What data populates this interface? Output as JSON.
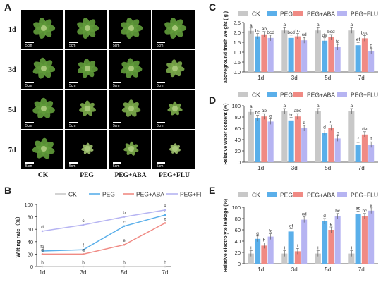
{
  "panel_labels": {
    "a": "A",
    "b": "B",
    "c": "C",
    "d": "D",
    "e": "E"
  },
  "photos": {
    "rows": [
      "1d",
      "3d",
      "5d",
      "7d"
    ],
    "columns": [
      "CK",
      "PEG",
      "PEG+ABA",
      "PEG+FLU"
    ],
    "scale_label": "5cm"
  },
  "colors": {
    "CK": "#c8c8c8",
    "PEG": "#5aafea",
    "PEG+ABA": "#f08a84",
    "PEG+FLU": "#b6b4f2"
  },
  "chart_data": [
    {
      "id": "B",
      "type": "line",
      "x": [
        "1d",
        "3d",
        "5d",
        "7d"
      ],
      "ylabel": "Wilting rate（%）",
      "ylim": [
        0,
        100
      ],
      "yticks": [
        0,
        20,
        40,
        60,
        80,
        100
      ],
      "series": [
        {
          "name": "CK",
          "values": [
            0,
            0,
            0,
            0
          ],
          "labels": [
            "h",
            "h",
            "h",
            "h"
          ]
        },
        {
          "name": "PEG",
          "values": [
            25,
            27,
            65,
            83
          ],
          "labels": [
            "fg",
            "f",
            "c",
            "b"
          ]
        },
        {
          "name": "PEG+ABA",
          "values": [
            20,
            20,
            35,
            70
          ],
          "labels": [
            "g",
            "g",
            "e",
            "c"
          ]
        },
        {
          "name": "PEG+FLU",
          "values": [
            57,
            67,
            80,
            91
          ],
          "labels": [
            "d",
            "c",
            "b",
            "a"
          ]
        }
      ]
    },
    {
      "id": "C",
      "type": "bar",
      "categories": [
        "1d",
        "3d",
        "5d",
        "7d"
      ],
      "ylabel": "aboveground fresh weight ( g )",
      "ylim": [
        0,
        2.5
      ],
      "yticks": [
        0.0,
        0.5,
        1.0,
        1.5,
        2.0,
        2.5
      ],
      "tick_format": "1",
      "series": [
        {
          "name": "CK",
          "values": [
            2.08,
            2.1,
            2.1,
            2.1
          ],
          "labels": [
            "a",
            "a",
            "a",
            "a"
          ]
        },
        {
          "name": "PEG",
          "values": [
            1.8,
            1.72,
            1.58,
            1.35
          ],
          "labels": [
            "bc",
            "bcd",
            "de",
            "ef"
          ]
        },
        {
          "name": "PEG+ABA",
          "values": [
            1.9,
            1.8,
            1.75,
            1.7
          ],
          "labels": [
            "ab",
            "bc",
            "bcd",
            "bcd"
          ]
        },
        {
          "name": "PEG+FLU",
          "values": [
            1.72,
            1.6,
            1.25,
            1.05
          ],
          "labels": [
            "bcd",
            "cd",
            "fg",
            "g"
          ]
        }
      ]
    },
    {
      "id": "D",
      "type": "bar",
      "categories": [
        "1d",
        "3d",
        "5d",
        "7d"
      ],
      "ylabel": "Relative water content (%)",
      "ylim": [
        0,
        100
      ],
      "yticks": [
        0,
        20,
        40,
        60,
        80,
        100
      ],
      "tick_format": "0",
      "series": [
        {
          "name": "CK",
          "values": [
            89,
            90,
            90,
            90
          ],
          "labels": [
            "a",
            "a",
            "a",
            "a"
          ]
        },
        {
          "name": "PEG",
          "values": [
            78,
            74,
            52,
            30
          ],
          "labels": [
            "bc",
            "bc",
            "d",
            "f"
          ]
        },
        {
          "name": "PEG+ABA",
          "values": [
            81,
            81,
            61,
            49
          ],
          "labels": [
            "ab",
            "abc",
            "d",
            "de"
          ]
        },
        {
          "name": "PEG+FLU",
          "values": [
            72,
            60,
            42,
            31
          ],
          "labels": [
            "c",
            "d",
            "e",
            "f"
          ]
        }
      ]
    },
    {
      "id": "E",
      "type": "bar",
      "categories": [
        "1d",
        "3d",
        "5d",
        "7d"
      ],
      "ylabel": "Relative electrolyte leakage (%)",
      "ylim": [
        0,
        100
      ],
      "yticks": [
        0,
        20,
        40,
        60,
        80,
        100
      ],
      "tick_format": "0",
      "series": [
        {
          "name": "CK",
          "values": [
            18,
            18,
            18,
            18
          ],
          "labels": [
            "i",
            "i",
            "i",
            "i"
          ]
        },
        {
          "name": "PEG",
          "values": [
            44,
            57,
            75,
            88
          ],
          "labels": [
            "g",
            "ef",
            "d",
            "ab"
          ]
        },
        {
          "name": "PEG+ABA",
          "values": [
            32,
            22,
            60,
            84
          ],
          "labels": [
            "h",
            "i",
            "e",
            "bc"
          ]
        },
        {
          "name": "PEG+FLU",
          "values": [
            48,
            78,
            84,
            94
          ],
          "labels": [
            "fg",
            "cd",
            "bc",
            "a"
          ]
        }
      ]
    }
  ]
}
